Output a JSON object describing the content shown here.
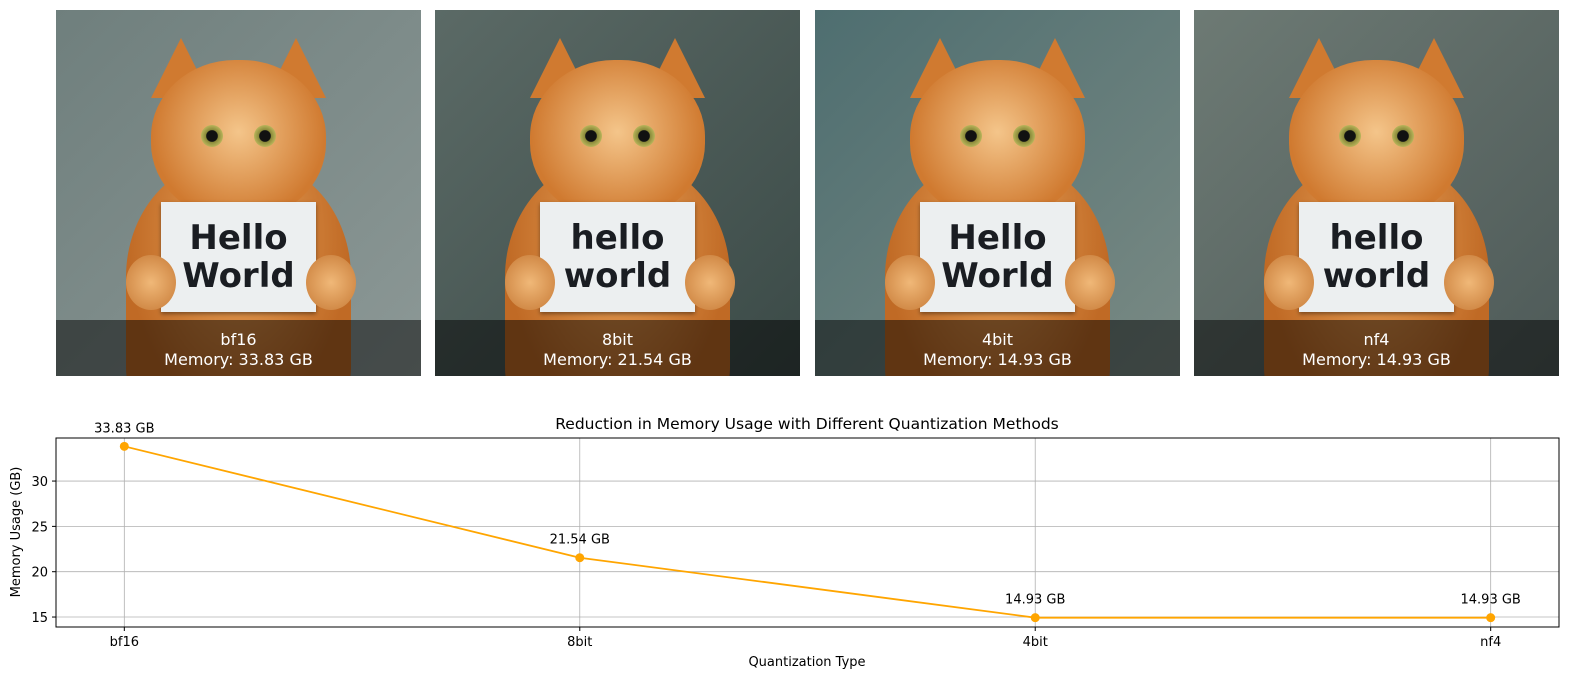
{
  "panels": [
    {
      "label": "bf16",
      "memory": "Memory: 33.83 GB",
      "sign_text": "Hello World",
      "bg": [
        "#6f7f7d",
        "#8c9896"
      ]
    },
    {
      "label": "8bit",
      "memory": "Memory: 21.54 GB",
      "sign_text": "hello world",
      "bg": [
        "#5b6a66",
        "#3b4a47"
      ]
    },
    {
      "label": "4bit",
      "memory": "Memory: 14.93 GB",
      "sign_text": "Hello World",
      "bg": [
        "#4e6e70",
        "#7a8a84"
      ]
    },
    {
      "label": "nf4",
      "memory": "Memory: 14.93 GB",
      "sign_text": "hello world",
      "bg": [
        "#6d7a74",
        "#4e5a58"
      ]
    }
  ],
  "chart_data": {
    "type": "line",
    "title": "Reduction in Memory Usage with Different Quantization Methods",
    "xlabel": "Quantization Type",
    "ylabel": "Memory Usage (GB)",
    "categories": [
      "bf16",
      "8bit",
      "4bit",
      "nf4"
    ],
    "values": [
      33.83,
      21.54,
      14.93,
      14.93
    ],
    "data_labels": [
      "33.83 GB",
      "21.54 GB",
      "14.93 GB",
      "14.93 GB"
    ],
    "yticks": [
      15,
      20,
      25,
      30
    ],
    "ylim": [
      13.9,
      34.75
    ],
    "grid": true,
    "color": "#ffa500",
    "marker": "o"
  }
}
